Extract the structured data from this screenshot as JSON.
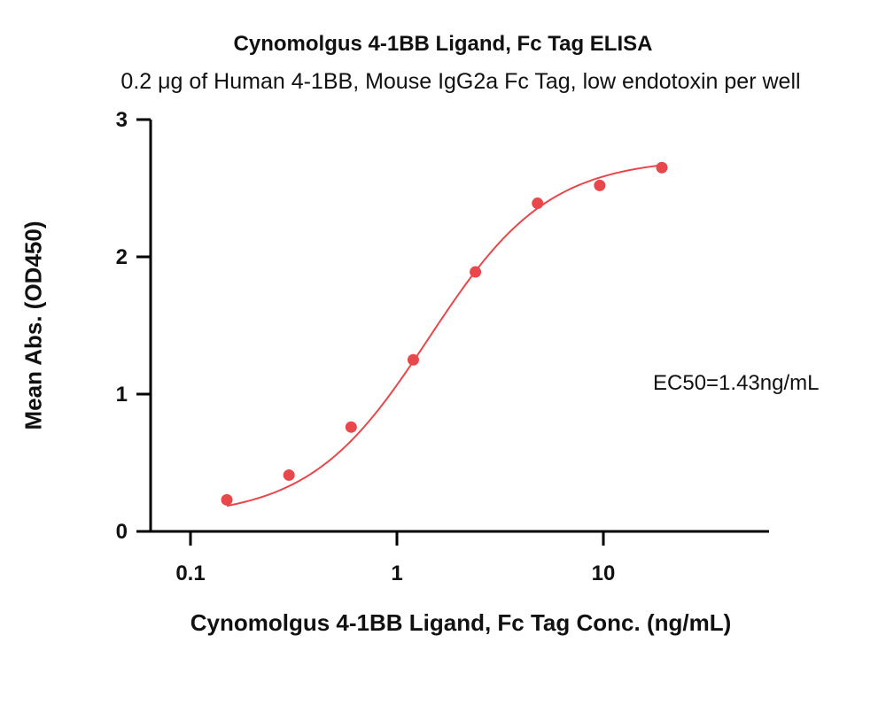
{
  "chart_data": {
    "type": "scatter",
    "title": "Cynomolgus 4-1BB Ligand, Fc Tag ELISA",
    "subtitle": "0.2 μg of Human 4-1BB, Mouse IgG2a Fc Tag, low endotoxin per well",
    "xlabel": "Cynomolgus 4-1BB Ligand, Fc Tag Conc. (ng/mL)",
    "ylabel": "Mean Abs. (OD450)",
    "x_scale": "log",
    "xlim": [
      0.06,
      50
    ],
    "ylim": [
      0,
      3
    ],
    "x_ticks": [
      0.1,
      1,
      10
    ],
    "x_tick_labels": [
      "0.1",
      "1",
      "10"
    ],
    "y_ticks": [
      0,
      1,
      2,
      3
    ],
    "y_tick_labels": [
      "0",
      "1",
      "2",
      "3"
    ],
    "grid": false,
    "series": [
      {
        "color": "#e8474c",
        "x": [
          0.15,
          0.3,
          0.6,
          1.2,
          2.4,
          4.8,
          9.6,
          19.2
        ],
        "y": [
          0.23,
          0.41,
          0.76,
          1.25,
          1.89,
          2.39,
          2.52,
          2.65
        ],
        "fit": "4PL",
        "fit_params": {
          "bottom": 0.1,
          "top": 2.72,
          "ec50": 1.43,
          "hill": 1.5
        }
      }
    ],
    "annotations": [
      {
        "text": "EC50=1.43ng/mL"
      }
    ]
  }
}
